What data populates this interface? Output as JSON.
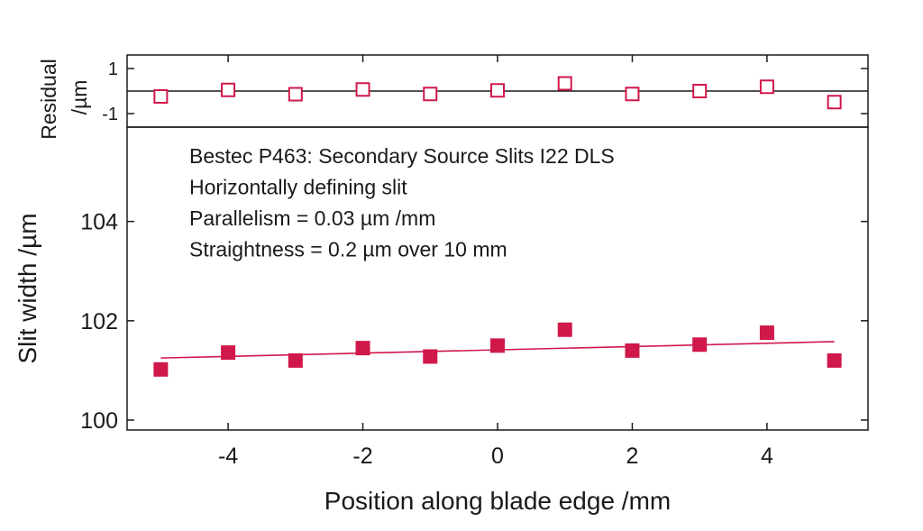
{
  "chart_data": [
    {
      "type": "scatter",
      "panel": "residual",
      "ylabel_line1": "Residual",
      "ylabel_line2": "/µm",
      "xlim": [
        -5.5,
        5.5
      ],
      "ylim": [
        -1.6,
        1.6
      ],
      "yticks": [
        {
          "value": 1,
          "label": "1"
        },
        {
          "value": -1,
          "label": "-1"
        }
      ],
      "zero_line": true,
      "marker": "hollow-square",
      "color": "#d0184a",
      "series": [
        {
          "x": [
            -5,
            -4,
            -3,
            -2,
            -1,
            0,
            1,
            2,
            3,
            4,
            5
          ],
          "y": [
            -0.24,
            0.05,
            -0.14,
            0.07,
            -0.13,
            0.03,
            0.34,
            -0.13,
            0.0,
            0.19,
            -0.49
          ]
        }
      ]
    },
    {
      "type": "scatter",
      "panel": "main",
      "xlabel": "Position along blade edge /mm",
      "ylabel": "Slit width /µm",
      "xlim": [
        -5.5,
        5.5
      ],
      "ylim": [
        99.8,
        105.9
      ],
      "xticks": [
        {
          "value": -4,
          "label": "-4"
        },
        {
          "value": -2,
          "label": "-2"
        },
        {
          "value": 0,
          "label": "0"
        },
        {
          "value": 2,
          "label": "2"
        },
        {
          "value": 4,
          "label": "4"
        }
      ],
      "yticks": [
        {
          "value": 100,
          "label": "100"
        },
        {
          "value": 102,
          "label": "102"
        },
        {
          "value": 104,
          "label": "104"
        }
      ],
      "marker": "filled-square",
      "color": "#d0184a",
      "series": [
        {
          "x": [
            -5,
            -4,
            -3,
            -2,
            -1,
            0,
            1,
            2,
            3,
            4,
            5
          ],
          "y": [
            101.02,
            101.36,
            101.2,
            101.45,
            101.28,
            101.5,
            101.82,
            101.4,
            101.52,
            101.76,
            101.2
          ]
        }
      ],
      "fit_line": {
        "x": [
          -5,
          5
        ],
        "y": [
          101.25,
          101.58
        ]
      },
      "annotations": [
        "Bestec P463: Secondary Source Slits I22 DLS",
        "Horizontally defining slit",
        "Parallelism = 0.03 µm /mm",
        "Straightness = 0.2 µm over 10 mm"
      ]
    }
  ]
}
